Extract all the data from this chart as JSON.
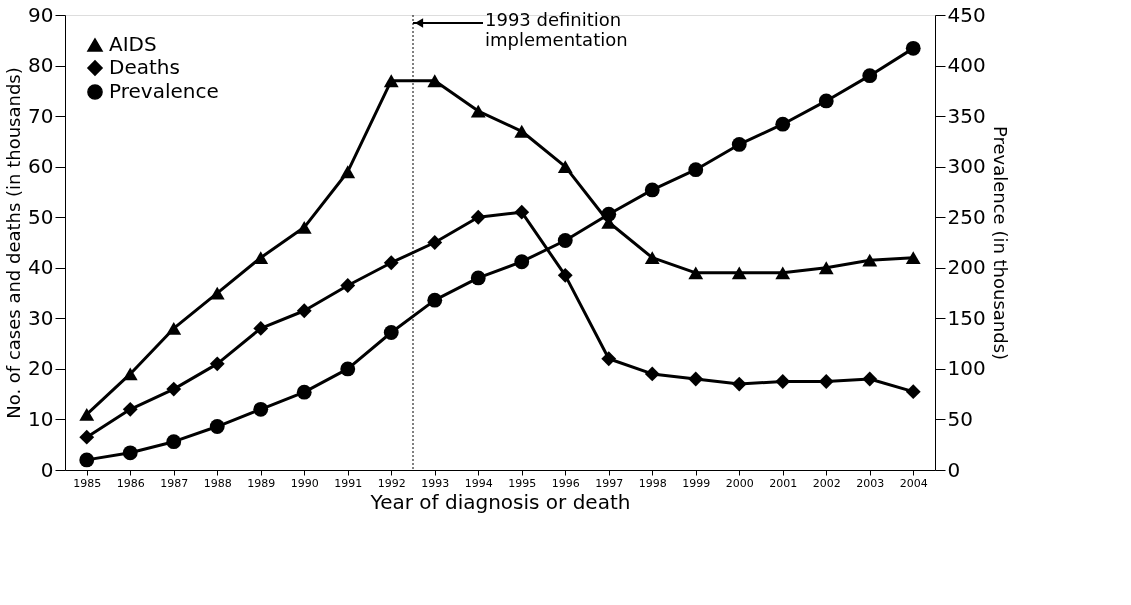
{
  "chart_data": {
    "type": "line",
    "xlabel": "Year of diagnosis or death",
    "ylabel": "No. of cases and deaths (in thousands)",
    "y2label": "Prevalence (in thousands)",
    "x": [
      1985,
      1986,
      1987,
      1988,
      1989,
      1990,
      1991,
      1992,
      1993,
      1994,
      1995,
      1996,
      1997,
      1998,
      1999,
      2000,
      2001,
      2002,
      2003,
      2004
    ],
    "xlim": [
      1984.5,
      2004.5
    ],
    "xticks": [
      1985,
      1986,
      1987,
      1988,
      1989,
      1990,
      1991,
      1992,
      1993,
      1994,
      1995,
      1996,
      1997,
      1998,
      1999,
      2000,
      2001,
      2002,
      2003,
      2004
    ],
    "ylim": [
      0,
      90
    ],
    "yticks": [
      0,
      10,
      20,
      30,
      40,
      50,
      60,
      70,
      80,
      90
    ],
    "y2lim": [
      0,
      450
    ],
    "y2ticks": [
      0,
      50,
      100,
      150,
      200,
      250,
      300,
      350,
      400,
      450
    ],
    "series": [
      {
        "name": "AIDS",
        "color": "#000000",
        "marker": "triangle",
        "values": [
          11,
          19,
          28,
          35,
          42,
          48,
          59,
          77,
          77,
          71,
          67,
          60,
          49,
          42,
          39,
          39,
          39,
          40,
          41.5,
          42
        ]
      },
      {
        "name": "Deaths",
        "color": "#000000",
        "marker": "diamond",
        "values": [
          6.5,
          12,
          16,
          21,
          28,
          31.5,
          36.5,
          41,
          45,
          50,
          51,
          38.5,
          22,
          19,
          18,
          17,
          17.5,
          17.5,
          18,
          15.5
        ]
      },
      {
        "name": "Prevalence",
        "color": "#000000",
        "marker": "circle",
        "axis": "y2",
        "values": [
          10,
          17,
          28,
          43,
          60,
          77,
          100,
          136,
          168,
          190,
          206,
          227,
          253,
          277,
          297,
          322,
          342,
          365,
          390,
          417
        ]
      }
    ],
    "ref_lines": [
      {
        "axis": "x",
        "value": 1992.5,
        "label": "1993 definition\nimplementation",
        "line_style": "dotted",
        "color": "#000000"
      }
    ],
    "grid": false,
    "legend": "top left",
    "line_style": "solid"
  }
}
